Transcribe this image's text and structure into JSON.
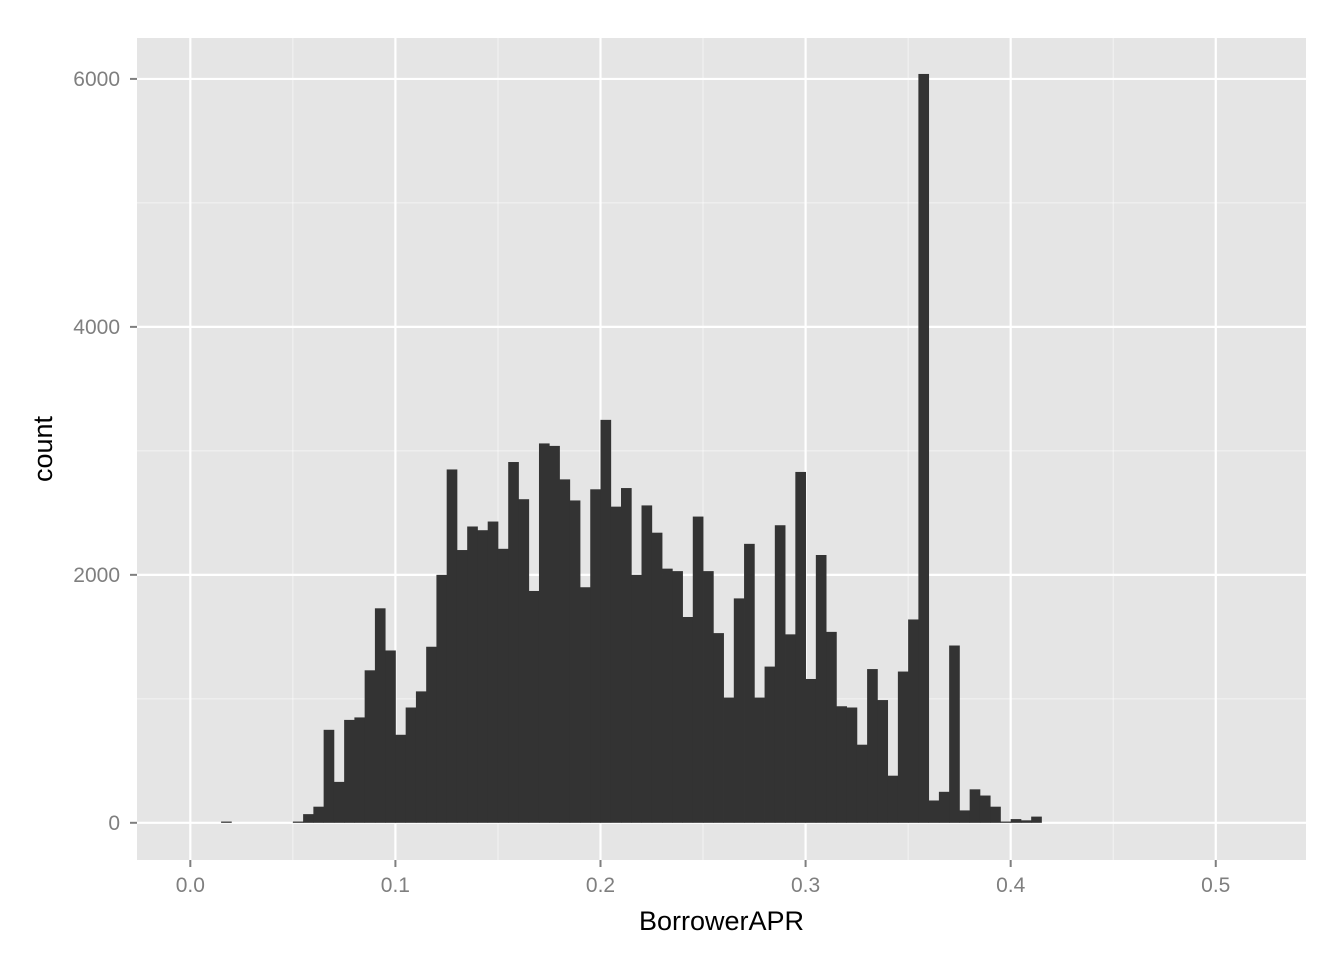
{
  "chart_data": {
    "type": "bar",
    "subtype": "histogram",
    "title": "",
    "xlabel": "BorrowerAPR",
    "ylabel": "count",
    "xlim": [
      -0.026,
      0.544
    ],
    "ylim": [
      -300,
      6330
    ],
    "x_ticks": [
      0.0,
      0.1,
      0.2,
      0.3,
      0.4,
      0.5
    ],
    "x_tick_labels": [
      "0.0",
      "0.1",
      "0.2",
      "0.3",
      "0.4",
      "0.5"
    ],
    "y_ticks": [
      0,
      2000,
      4000,
      6000
    ],
    "y_tick_labels": [
      "0",
      "2000",
      "4000",
      "6000"
    ],
    "grid": true,
    "bin_width": 0.005,
    "bins_start": [
      0.015,
      0.05,
      0.055,
      0.06,
      0.065,
      0.07,
      0.075,
      0.08,
      0.085,
      0.09,
      0.095,
      0.1,
      0.105,
      0.11,
      0.115,
      0.12,
      0.125,
      0.13,
      0.135,
      0.14,
      0.145,
      0.15,
      0.155,
      0.16,
      0.165,
      0.17,
      0.175,
      0.18,
      0.185,
      0.19,
      0.195,
      0.2,
      0.205,
      0.21,
      0.215,
      0.22,
      0.225,
      0.23,
      0.235,
      0.24,
      0.245,
      0.25,
      0.255,
      0.26,
      0.265,
      0.27,
      0.275,
      0.28,
      0.285,
      0.29,
      0.295,
      0.3,
      0.305,
      0.31,
      0.315,
      0.32,
      0.325,
      0.33,
      0.335,
      0.34,
      0.345,
      0.35,
      0.355,
      0.36,
      0.365,
      0.37,
      0.375,
      0.38,
      0.385,
      0.39,
      0.395,
      0.4,
      0.405,
      0.41
    ],
    "counts": [
      10,
      10,
      70,
      130,
      750,
      330,
      830,
      850,
      1230,
      1730,
      1390,
      710,
      930,
      1060,
      1420,
      2000,
      2850,
      2200,
      2390,
      2360,
      2430,
      2210,
      2910,
      2610,
      1870,
      3060,
      3040,
      2770,
      2600,
      1900,
      2690,
      3250,
      2550,
      2700,
      2000,
      2560,
      2340,
      2050,
      2030,
      1660,
      2470,
      2030,
      1530,
      1010,
      1810,
      2250,
      1010,
      1260,
      2400,
      1520,
      2830,
      1160,
      2160,
      1540,
      940,
      930,
      630,
      1240,
      990,
      380,
      1220,
      1640,
      6040,
      180,
      250,
      1430,
      100,
      270,
      220,
      130,
      10,
      30,
      20,
      50
    ],
    "bar_color": "#333333",
    "panel_color": "#e5e5e5",
    "grid_color": "#ffffff"
  }
}
